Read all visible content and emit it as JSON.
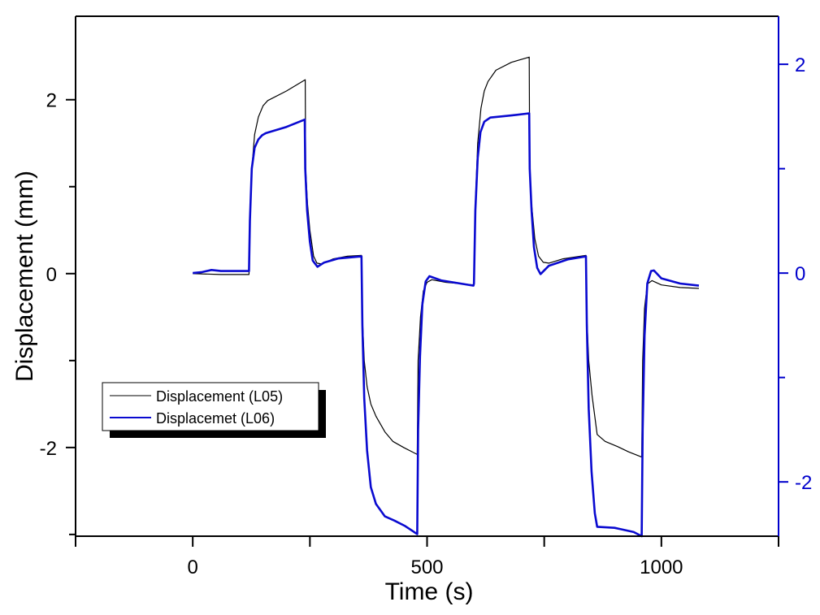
{
  "chart_data": {
    "type": "line",
    "title": "",
    "xlabel": "Time (s)",
    "ylabel": "Displacement (mm)",
    "y2label": "",
    "xlim": [
      -250,
      1250
    ],
    "ylim": [
      -3.02,
      2.96
    ],
    "y2lim": [
      -2.52,
      2.46
    ],
    "x_ticks": [
      -250,
      0,
      250,
      500,
      750,
      1000,
      1250
    ],
    "x_tick_labels": {
      "0": "0",
      "500": "500",
      "1000": "1000"
    },
    "y_ticks": [
      2,
      1,
      0,
      -1,
      -2,
      -3
    ],
    "y_tick_labels": {
      "2": "2",
      "0": "0",
      "-2": "-2"
    },
    "y2_ticks": [
      2,
      1,
      0,
      -1,
      -2
    ],
    "y2_tick_labels": {
      "2": "2",
      "0": "0",
      "-2": "-2"
    },
    "grid": false,
    "legend_position": "lower-left",
    "colors": {
      "axis": "#000000",
      "right_axis": "#0000cc"
    },
    "series": [
      {
        "name": "Displacement (L05)",
        "axis": "left",
        "color": "#000000",
        "x": [
          0,
          60,
          120,
          122,
          126,
          132,
          140,
          150,
          160,
          200,
          240,
          241,
          245,
          250,
          258,
          265,
          275,
          300,
          330,
          360,
          362,
          366,
          372,
          380,
          391,
          410,
          427,
          450,
          479,
          481,
          486,
          492,
          500,
          510,
          540,
          599,
          600,
          603,
          608,
          615,
          622,
          630,
          647,
          680,
          718,
          719,
          723,
          730,
          738,
          748,
          760,
          790,
          839,
          841,
          845,
          852,
          863,
          880,
          907,
          930,
          958,
          960,
          964,
          970,
          980,
          1000,
          1040,
          1080
        ],
        "y": [
          0,
          -0.01,
          -0.01,
          0.5,
          1.2,
          1.6,
          1.8,
          1.93,
          1.99,
          2.1,
          2.23,
          1.2,
          0.8,
          0.5,
          0.2,
          0.12,
          0.11,
          0.17,
          0.2,
          0.21,
          -0.5,
          -1.0,
          -1.3,
          -1.5,
          -1.64,
          -1.82,
          -1.93,
          -2.0,
          -2.08,
          -1.0,
          -0.5,
          -0.2,
          -0.1,
          -0.07,
          -0.1,
          -0.13,
          -0.12,
          0.8,
          1.5,
          1.9,
          2.1,
          2.21,
          2.34,
          2.43,
          2.49,
          1.2,
          0.8,
          0.4,
          0.2,
          0.13,
          0.12,
          0.17,
          0.21,
          -0.5,
          -1.0,
          -1.4,
          -1.85,
          -1.93,
          -1.99,
          -2.05,
          -2.11,
          -1.0,
          -0.4,
          -0.12,
          -0.08,
          -0.13,
          -0.16,
          -0.17
        ]
      },
      {
        "name": "Displacemet (L06)",
        "axis": "right",
        "color": "#0a0ad0",
        "x": [
          0,
          20,
          40,
          60,
          120,
          122,
          126,
          132,
          140,
          148,
          156,
          200,
          239,
          240,
          244,
          250,
          256,
          266,
          280,
          310,
          360,
          362,
          366,
          372,
          380,
          391,
          410,
          430,
          452,
          479,
          481,
          485,
          490,
          497,
          505,
          530,
          599,
          600,
          603,
          608,
          614,
          622,
          635,
          680,
          718,
          719,
          723,
          728,
          735,
          742,
          760,
          800,
          839,
          841,
          845,
          851,
          858,
          863,
          900,
          941,
          958,
          960,
          964,
          970,
          978,
          984,
          1000,
          1040,
          1080
        ],
        "y": [
          0,
          0.01,
          0.03,
          0.02,
          0.02,
          0.5,
          1.0,
          1.2,
          1.28,
          1.32,
          1.34,
          1.4,
          1.47,
          1.0,
          0.6,
          0.3,
          0.12,
          0.06,
          0.1,
          0.14,
          0.16,
          -0.5,
          -1.2,
          -1.7,
          -2.05,
          -2.21,
          -2.33,
          -2.37,
          -2.42,
          -2.5,
          -1.5,
          -0.8,
          -0.3,
          -0.08,
          -0.03,
          -0.07,
          -0.12,
          -0.1,
          0.6,
          1.1,
          1.35,
          1.45,
          1.49,
          1.51,
          1.53,
          1.0,
          0.6,
          0.25,
          0.05,
          -0.01,
          0.07,
          0.13,
          0.16,
          -0.5,
          -1.3,
          -1.9,
          -2.3,
          -2.43,
          -2.44,
          -2.48,
          -2.52,
          -1.5,
          -0.6,
          -0.1,
          0.02,
          0.025,
          -0.05,
          -0.1,
          -0.12
        ]
      }
    ]
  }
}
